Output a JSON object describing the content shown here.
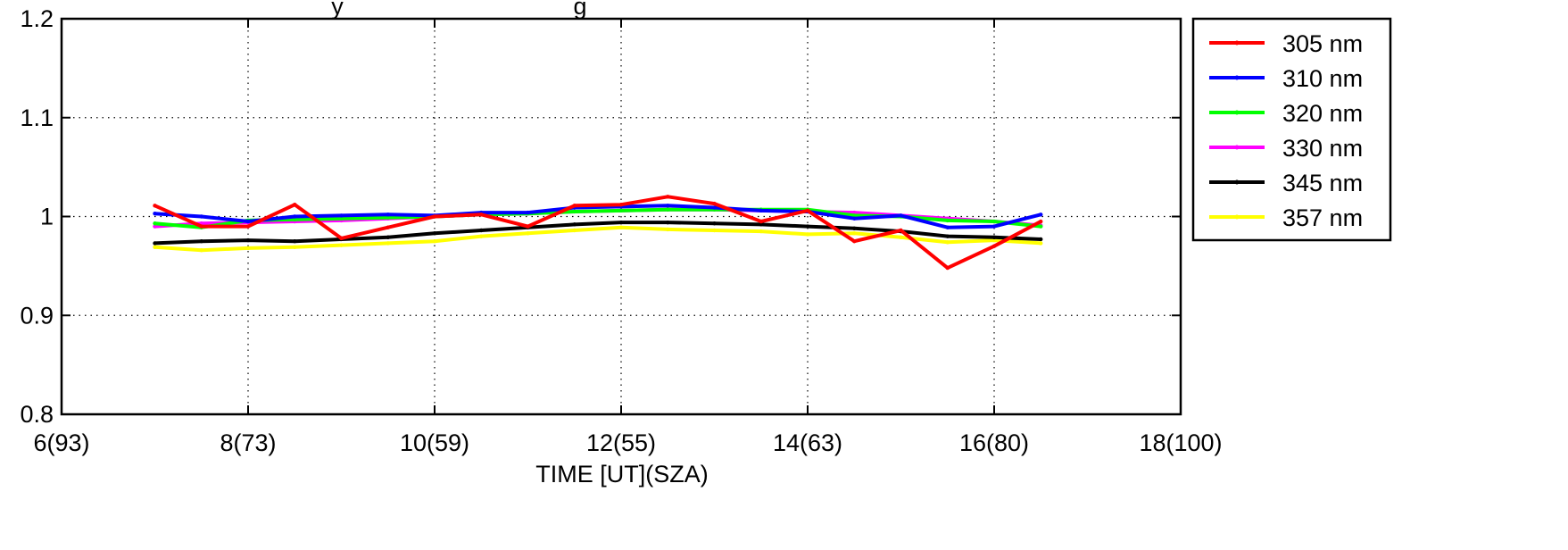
{
  "chart_data": {
    "type": "line",
    "title": "",
    "title_fragment": "y",
    "title_fragment_2": "g",
    "xlabel": "TIME [UT](SZA)",
    "ylabel": "",
    "xlim": [
      6,
      18
    ],
    "ylim": [
      0.8,
      1.2
    ],
    "x_ticks": [
      {
        "value": 6,
        "label": "6(93)"
      },
      {
        "value": 8,
        "label": "8(73)"
      },
      {
        "value": 10,
        "label": "10(59)"
      },
      {
        "value": 12,
        "label": "12(55)"
      },
      {
        "value": 14,
        "label": "14(63)"
      },
      {
        "value": 16,
        "label": "16(80)"
      },
      {
        "value": 18,
        "label": "18(100)"
      }
    ],
    "y_ticks": [
      {
        "value": 0.8,
        "label": "0.8"
      },
      {
        "value": 0.9,
        "label": "0.9"
      },
      {
        "value": 1.0,
        "label": "1"
      },
      {
        "value": 1.1,
        "label": "1.1"
      },
      {
        "value": 1.2,
        "label": "1.2"
      }
    ],
    "grid": true,
    "legend_position": "right",
    "x": [
      7,
      7.5,
      8,
      8.5,
      9,
      9.5,
      10,
      10.5,
      11,
      11.5,
      12,
      12.5,
      13,
      13.5,
      14,
      14.5,
      15,
      15.5,
      16,
      16.5
    ],
    "series": [
      {
        "name": "305 nm",
        "color": "#ff0000",
        "values": [
          1.011,
          0.99,
          0.99,
          1.012,
          0.978,
          0.989,
          1.0,
          1.002,
          0.99,
          1.011,
          1.012,
          1.02,
          1.013,
          0.995,
          1.006,
          0.975,
          0.986,
          0.948,
          0.97,
          0.995
        ]
      },
      {
        "name": "310 nm",
        "color": "#0000ff",
        "values": [
          1.003,
          1.0,
          0.995,
          1.0,
          1.001,
          1.002,
          1.001,
          1.004,
          1.004,
          1.009,
          1.01,
          1.011,
          1.009,
          1.006,
          1.005,
          0.998,
          1.001,
          0.989,
          0.99,
          1.002
        ]
      },
      {
        "name": "320 nm",
        "color": "#00ff00",
        "values": [
          0.993,
          0.989,
          0.996,
          0.997,
          0.998,
          0.999,
          1.0,
          1.002,
          1.003,
          1.005,
          1.006,
          1.007,
          1.007,
          1.007,
          1.007,
          1.001,
          1.0,
          0.996,
          0.995,
          0.99
        ]
      },
      {
        "name": "330 nm",
        "color": "#ff00ff",
        "values": [
          0.99,
          0.993,
          0.994,
          0.995,
          0.996,
          0.998,
          1.0,
          1.002,
          1.003,
          1.005,
          1.006,
          1.007,
          1.007,
          1.006,
          1.005,
          1.004,
          1.001,
          0.998,
          0.995,
          0.991
        ]
      },
      {
        "name": "345 nm",
        "color": "#000000",
        "values": [
          0.973,
          0.975,
          0.976,
          0.975,
          0.977,
          0.979,
          0.983,
          0.986,
          0.989,
          0.992,
          0.994,
          0.994,
          0.993,
          0.992,
          0.99,
          0.988,
          0.985,
          0.98,
          0.979,
          0.977
        ]
      },
      {
        "name": "357 nm",
        "color": "#ffff00",
        "values": [
          0.969,
          0.966,
          0.968,
          0.969,
          0.971,
          0.973,
          0.975,
          0.98,
          0.983,
          0.986,
          0.989,
          0.987,
          0.986,
          0.985,
          0.982,
          0.983,
          0.979,
          0.974,
          0.976,
          0.973
        ]
      }
    ]
  }
}
